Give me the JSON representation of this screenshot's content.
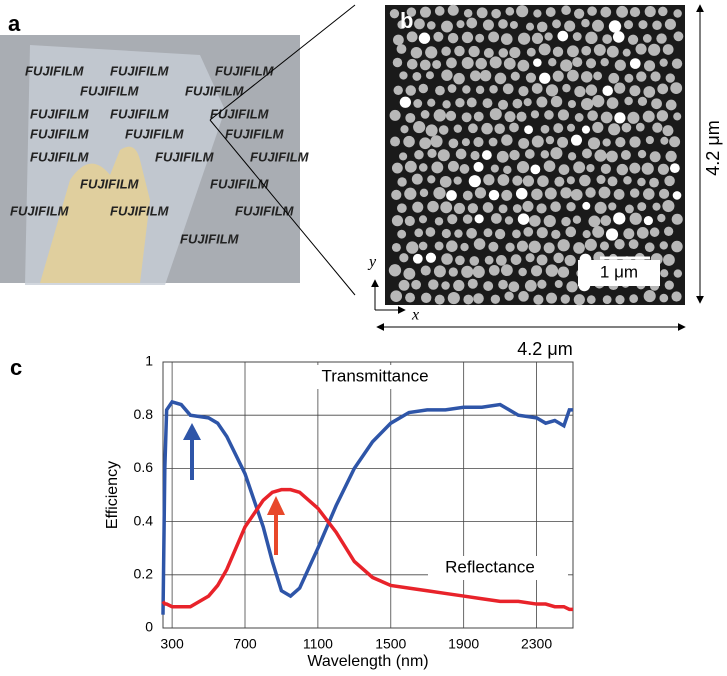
{
  "panels": {
    "a": {
      "label": "a",
      "photo_text": "FUJIFILM"
    },
    "b": {
      "label": "b",
      "scale_bar": "1 μm",
      "axis_x": "x",
      "axis_y": "y",
      "width_label": "4.2 μm",
      "height_label": "4.2 μm"
    }
  },
  "chart_data": {
    "type": "line",
    "panel_label": "c",
    "x_label": "Wavelength (nm)",
    "y_label": "Efficiency",
    "x": [
      250,
      260,
      270,
      300,
      350,
      400,
      500,
      550,
      600,
      700,
      800,
      850,
      900,
      950,
      1000,
      1100,
      1200,
      1300,
      1400,
      1500,
      1600,
      1700,
      1800,
      1900,
      2000,
      2100,
      2200,
      2300,
      2350,
      2400,
      2450,
      2480,
      2500
    ],
    "series": [
      {
        "name": "Transmittance",
        "color": "#2e55a8",
        "values": [
          0.05,
          0.6,
          0.82,
          0.85,
          0.84,
          0.8,
          0.79,
          0.77,
          0.72,
          0.58,
          0.38,
          0.25,
          0.14,
          0.12,
          0.15,
          0.3,
          0.46,
          0.6,
          0.7,
          0.77,
          0.81,
          0.82,
          0.82,
          0.83,
          0.83,
          0.84,
          0.8,
          0.79,
          0.77,
          0.78,
          0.76,
          0.82,
          0.82
        ]
      },
      {
        "name": "Reflectance",
        "color": "#e8232a",
        "values": [
          0.1,
          0.09,
          0.09,
          0.08,
          0.08,
          0.08,
          0.12,
          0.16,
          0.22,
          0.38,
          0.48,
          0.51,
          0.52,
          0.52,
          0.51,
          0.45,
          0.36,
          0.25,
          0.19,
          0.16,
          0.15,
          0.14,
          0.13,
          0.12,
          0.11,
          0.1,
          0.1,
          0.09,
          0.09,
          0.08,
          0.08,
          0.07,
          0.07
        ]
      }
    ],
    "xlim": [
      250,
      2500
    ],
    "xticks": [
      300,
      700,
      1100,
      1500,
      1900,
      2300
    ],
    "ylim": [
      0,
      1
    ],
    "yticks": [
      0,
      0.2,
      0.4,
      0.6,
      0.8,
      1
    ],
    "grid": true
  }
}
